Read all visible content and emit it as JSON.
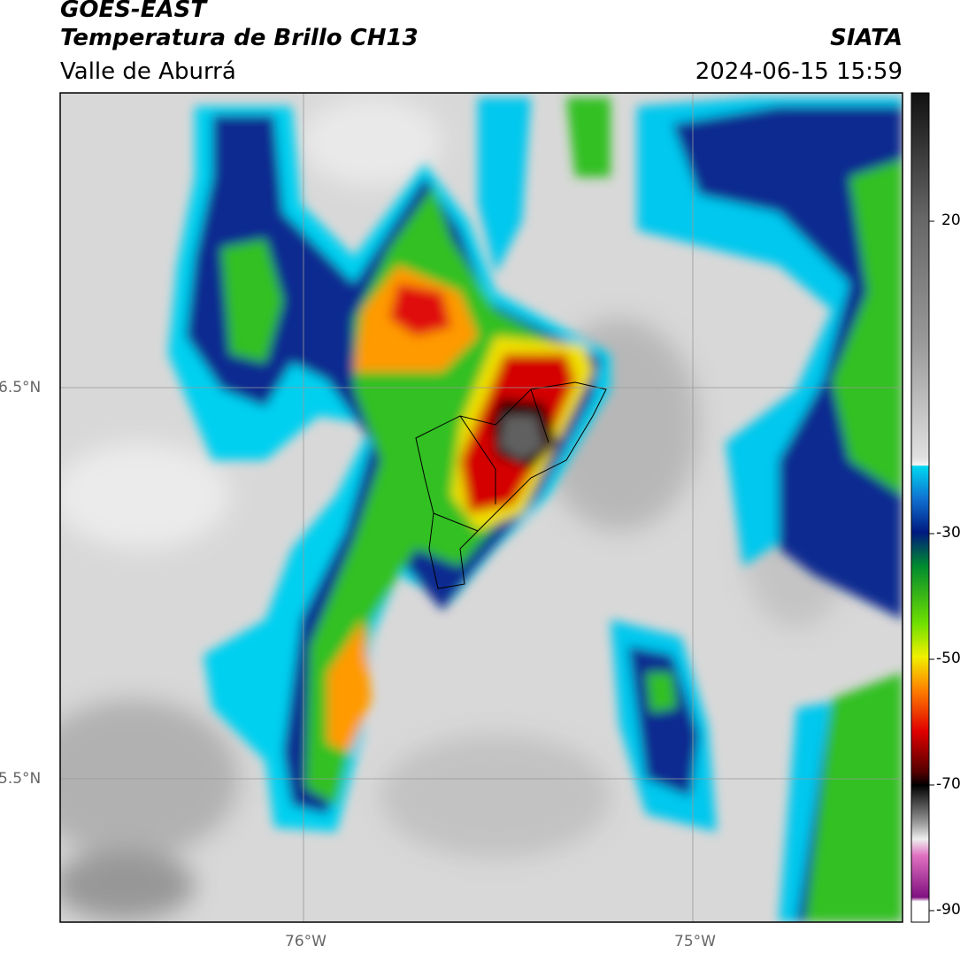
{
  "header": {
    "title": "GOES-EAST",
    "subtitle": "Temperatura de Brillo CH13",
    "org": "SIATA",
    "region": "Valle de Aburrá",
    "datetime": "2024-06-15 15:59"
  },
  "map": {
    "lat_labels": [
      "6.5°N",
      "5.5°N"
    ],
    "lon_labels": [
      "76°W",
      "75°W"
    ]
  },
  "colorbar": {
    "labels": [
      "20",
      "-30",
      "-50",
      "-70",
      "-90"
    ]
  }
}
